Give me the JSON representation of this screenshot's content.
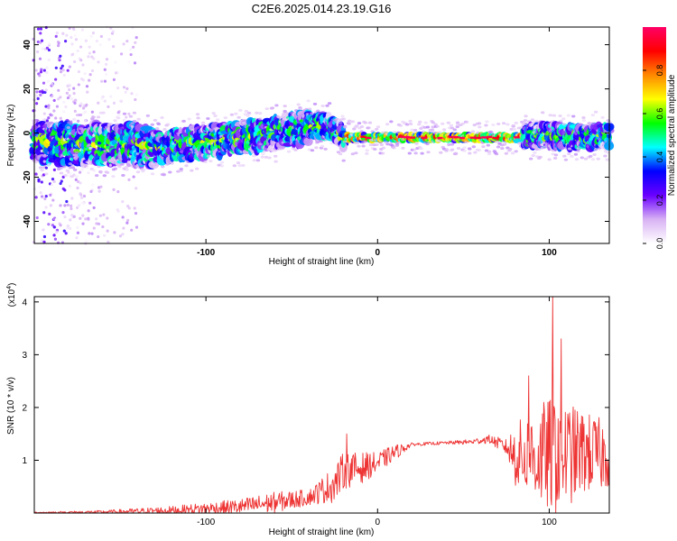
{
  "title": "C2E6.2025.014.23.19.G16",
  "chart_data": [
    {
      "type": "heatmap",
      "xlabel": "Height of straight line (km)",
      "ylabel": "Frequency (Hz)",
      "xlim": [
        -200,
        135
      ],
      "ylim": [
        -50,
        48
      ],
      "x_ticks": [
        -100,
        0,
        100
      ],
      "y_ticks": [
        -40,
        -20,
        0,
        20,
        40
      ],
      "colorbar": {
        "label": "Normalized spectral amplitude",
        "range": [
          0,
          1
        ],
        "ticks": [
          0.0,
          0.2,
          0.4,
          0.6,
          0.8
        ],
        "colormap": [
          "#ffffff",
          "#d8b2f4",
          "#6a00ff",
          "#0000ff",
          "#00ffff",
          "#00ff00",
          "#ffff00",
          "#ff8800",
          "#ff0000",
          "#ff0066"
        ]
      },
      "ridge": {
        "x": [
          -200,
          -175,
          -150,
          -125,
          -100,
          -80,
          -60,
          -45,
          -35,
          -28,
          -20,
          0,
          30,
          60,
          80,
          100,
          115,
          135
        ],
        "frequency": [
          -4,
          -5,
          -5,
          -6,
          -4,
          -2,
          0,
          2,
          3,
          3,
          -2,
          -2,
          -2,
          -2,
          -2,
          -1,
          -2,
          -1
        ]
      }
    },
    {
      "type": "line",
      "xlabel": "Height of straight line (km)",
      "ylabel": "SNR (10 * v/v)",
      "y_multiplier": "(x10",
      "y_multiplier_exponent": "4",
      "y_multiplier_close": ")",
      "xlim": [
        -200,
        135
      ],
      "ylim": [
        0,
        4.1
      ],
      "x_ticks": [
        -100,
        0,
        100
      ],
      "y_ticks": [
        1,
        2,
        3,
        4
      ],
      "series": [
        {
          "color": "#ee3333",
          "envelope": {
            "x": [
              -200,
              -160,
              -120,
              -80,
              -60,
              -40,
              -25,
              -20,
              -10,
              0,
              10,
              20,
              40,
              55,
              65,
              75,
              80,
              90,
              100,
              105,
              110,
              120,
              130,
              135
            ],
            "mean": [
              0.01,
              0.02,
              0.05,
              0.12,
              0.2,
              0.3,
              0.55,
              0.8,
              0.85,
              0.95,
              1.15,
              1.3,
              1.33,
              1.35,
              1.4,
              1.25,
              1.1,
              1.05,
              1.1,
              1.2,
              1.1,
              1.15,
              1.1,
              1.1
            ],
            "amp": [
              0.01,
              0.03,
              0.08,
              0.15,
              0.2,
              0.15,
              0.35,
              0.35,
              0.3,
              0.2,
              0.15,
              0.03,
              0.03,
              0.05,
              0.08,
              0.15,
              0.6,
              0.9,
              1.1,
              1.3,
              1.0,
              0.8,
              0.7,
              0.6
            ]
          },
          "peaks": [
            {
              "x": -18,
              "y": 1.5
            },
            {
              "x": 102,
              "y": 4.1
            },
            {
              "x": 107,
              "y": 3.3
            },
            {
              "x": 88,
              "y": 2.6
            }
          ]
        }
      ]
    }
  ]
}
